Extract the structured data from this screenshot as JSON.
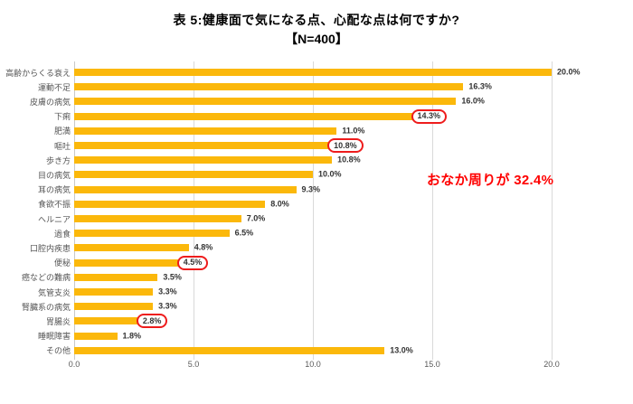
{
  "header": {
    "title": "表 5:健康面で気になる点、心配な点は何ですか?",
    "subtitle": "【N=400】"
  },
  "annotation": {
    "text": "おなか周りが 32.4%"
  },
  "colors": {
    "bar": "#FBB80B",
    "highlight_box": "#EE1C1C",
    "annotation_text": "#FF0000",
    "grid": "#D9D9D9",
    "category_label": "#555555",
    "tick_label": "#595959",
    "value_label": "#333333"
  },
  "chart_data": {
    "type": "bar",
    "orientation": "horizontal",
    "title": "表 5:健康面で気になる点、心配な点は何ですか?",
    "subtitle": "【N=400】",
    "categories": [
      "高齢からくる衰え",
      "運動不足",
      "皮膚の病気",
      "下痢",
      "肥満",
      "嘔吐",
      "歩き方",
      "目の病気",
      "耳の病気",
      "食欲不振",
      "ヘルニア",
      "過食",
      "口腔内疾患",
      "便秘",
      "癌などの難病",
      "気管支炎",
      "腎臓系の病気",
      "胃腸炎",
      "睡眠障害",
      "その他"
    ],
    "values": [
      20.0,
      16.3,
      16.0,
      14.3,
      11.0,
      10.8,
      10.8,
      10.0,
      9.3,
      8.0,
      7.0,
      6.5,
      4.8,
      4.5,
      3.5,
      3.3,
      3.3,
      2.8,
      1.8,
      13.0
    ],
    "value_labels": [
      "20.0%",
      "16.3%",
      "16.0%",
      "14.3%",
      "11.0%",
      "10.8%",
      "10.8%",
      "10.0%",
      "9.3%",
      "8.0%",
      "7.0%",
      "6.5%",
      "4.8%",
      "4.5%",
      "3.5%",
      "3.3%",
      "3.3%",
      "2.8%",
      "1.8%",
      "13.0%"
    ],
    "highlighted_indices": [
      3,
      5,
      13,
      17
    ],
    "xlim": [
      0,
      20
    ],
    "xticks": [
      0,
      5,
      10,
      15,
      20
    ],
    "xtick_labels": [
      "0.0",
      "5.0",
      "10.0",
      "15.0",
      "20.0"
    ],
    "grid": true,
    "legend": false,
    "annotation": "おなか周りが 32.4%"
  }
}
